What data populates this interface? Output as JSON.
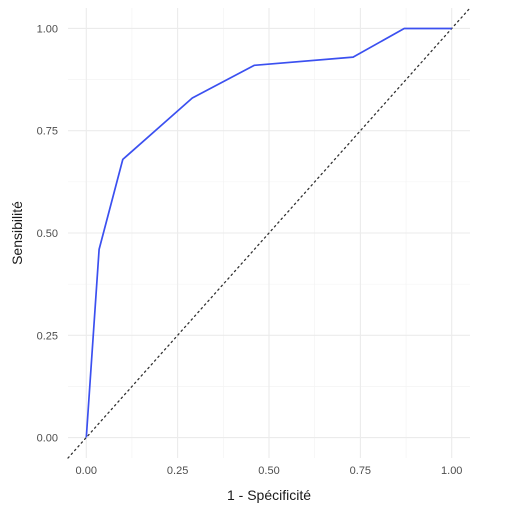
{
  "chart_data": {
    "type": "line",
    "title": "",
    "xlabel": "1 - Spécificité",
    "ylabel": "Sensibilité",
    "xlim": [
      -0.05,
      1.05
    ],
    "ylim": [
      -0.05,
      1.05
    ],
    "x_ticks": [
      0,
      0.25,
      0.5,
      0.75,
      1
    ],
    "x_tick_labels": [
      "0.00",
      "0.25",
      "0.50",
      "0.75",
      "1.00"
    ],
    "y_ticks": [
      0,
      0.25,
      0.5,
      0.75,
      1
    ],
    "y_tick_labels": [
      "0.00",
      "0.25",
      "0.50",
      "0.75",
      "1.00"
    ],
    "grid": true,
    "series": [
      {
        "color": "#3b50f0",
        "x": [
          0.0,
          0.035,
          0.1,
          0.29,
          0.46,
          0.73,
          0.87,
          1.0
        ],
        "y": [
          0.0,
          0.46,
          0.68,
          0.83,
          0.91,
          0.93,
          1.0,
          1.0
        ]
      }
    ],
    "reference_line": {
      "x": [
        -0.05,
        1.05
      ],
      "y": [
        -0.05,
        1.05
      ],
      "style": "dotted",
      "color": "#333333"
    }
  }
}
